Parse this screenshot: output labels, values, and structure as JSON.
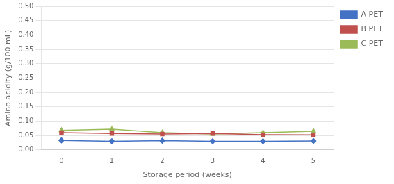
{
  "chart_data": {
    "type": "line",
    "x": [
      0,
      1,
      2,
      3,
      4,
      5
    ],
    "series": [
      {
        "name": "A PET",
        "color": "#4472C4",
        "marker": "diamond",
        "values": [
          0.033,
          0.03,
          0.032,
          0.03,
          0.03,
          0.031
        ]
      },
      {
        "name": "B PET",
        "color": "#C0504D",
        "marker": "square",
        "values": [
          0.06,
          0.057,
          0.055,
          0.057,
          0.053,
          0.052
        ]
      },
      {
        "name": "C PET",
        "color": "#9BBB59",
        "marker": "triangle",
        "values": [
          0.068,
          0.072,
          0.06,
          0.055,
          0.06,
          0.065
        ]
      }
    ],
    "xlabel": "Storage period (weeks)",
    "ylabel": "Amino acidity (g/100 mL)",
    "xlim": [
      -0.4,
      5.4
    ],
    "xticks": [
      0,
      1,
      2,
      3,
      4,
      5
    ],
    "ylim": [
      0.0,
      0.5
    ],
    "yticks": [
      {
        "value": 0.0,
        "label": "0.00"
      },
      0.05,
      {
        "value": 0.1,
        "label": "0.10"
      },
      0.15,
      {
        "value": 0.2,
        "label": "0.20"
      },
      0.25,
      {
        "value": 0.3,
        "label": "0.30"
      },
      0.35,
      {
        "value": 0.4,
        "label": "0.40"
      },
      0.45,
      {
        "value": 0.5,
        "label": "0.50"
      }
    ],
    "grid": "y",
    "legend": "right"
  }
}
